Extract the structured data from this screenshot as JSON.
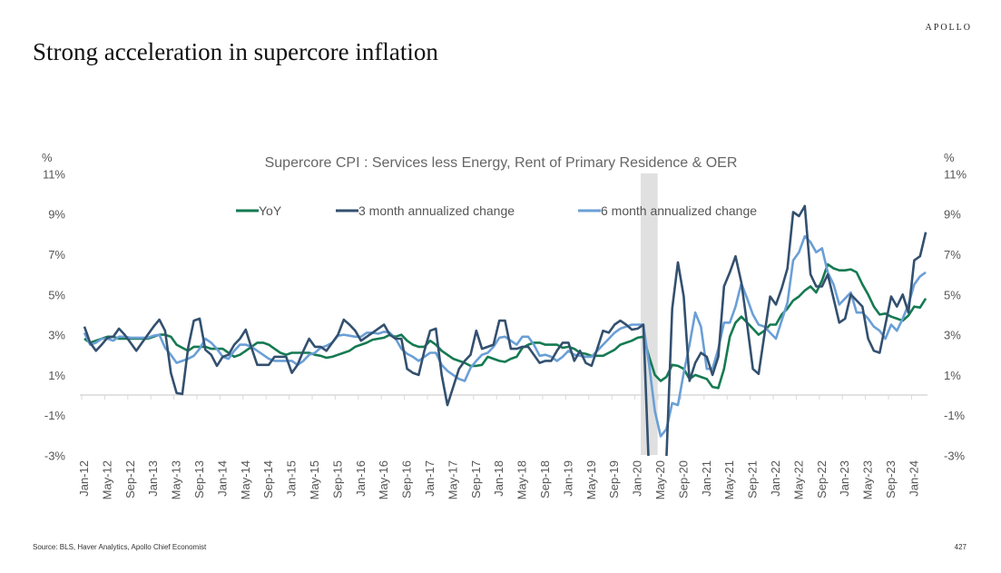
{
  "header": {
    "title": "Strong acceleration in supercore inflation",
    "logo": "APOLLO"
  },
  "footer": {
    "source": "Source: BLS, Haver Analytics, Apollo Chief Economist",
    "page_number": "427"
  },
  "colors": {
    "yoy": "#157a52",
    "m3": "#33506f",
    "m6": "#6a9fd6",
    "recession": "#e0e0e0",
    "axis": "#d9d9d9"
  },
  "chart_data": {
    "type": "line",
    "title": "Supercore CPI : Services less Energy, Rent of Primary Residence & OER",
    "yunit_left": "%",
    "yunit_right": "%",
    "ylim": [
      -3,
      11
    ],
    "yticks": [
      "11%",
      "9%",
      "7%",
      "5%",
      "3%",
      "1%",
      "-1%",
      "-3%"
    ],
    "ytick_values": [
      11,
      9,
      7,
      5,
      3,
      1,
      -1,
      -3
    ],
    "x_start": "Jan-12",
    "x_end": "Mar-24",
    "xtick_labels": [
      "Jan-12",
      "May-12",
      "Sep-12",
      "Jan-13",
      "May-13",
      "Sep-13",
      "Jan-14",
      "May-14",
      "Sep-14",
      "Jan-15",
      "May-15",
      "Sep-15",
      "Jan-16",
      "May-16",
      "Sep-16",
      "Jan-17",
      "May-17",
      "Sep-17",
      "Jan-18",
      "May-18",
      "Sep-18",
      "Jan-19",
      "May-19",
      "Sep-19",
      "Jan-20",
      "May-20",
      "Sep-20",
      "Jan-21",
      "May-21",
      "Sep-21",
      "Jan-22",
      "May-22",
      "Sep-22",
      "Jan-23",
      "May-23",
      "Sep-23",
      "Jan-24"
    ],
    "shaded_period": [
      "Feb-20",
      "Apr-20"
    ],
    "grid": false,
    "legend_position": "top",
    "series": [
      {
        "name": "YoY",
        "values": [
          2.8,
          2.6,
          2.7,
          2.8,
          2.9,
          2.9,
          2.8,
          2.8,
          2.8,
          2.8,
          2.8,
          2.8,
          2.9,
          3.0,
          3.0,
          2.9,
          2.5,
          2.35,
          2.2,
          2.4,
          2.4,
          2.4,
          2.3,
          2.3,
          2.3,
          2.1,
          1.9,
          2.0,
          2.2,
          2.4,
          2.6,
          2.6,
          2.5,
          2.3,
          2.1,
          2.0,
          2.1,
          2.1,
          2.1,
          2.1,
          2.0,
          1.95,
          1.85,
          1.9,
          2.0,
          2.1,
          2.2,
          2.4,
          2.5,
          2.6,
          2.75,
          2.8,
          2.85,
          3.0,
          2.9,
          3.0,
          2.7,
          2.5,
          2.4,
          2.4,
          2.7,
          2.5,
          2.2,
          2.0,
          1.8,
          1.7,
          1.6,
          1.45,
          1.45,
          1.5,
          1.9,
          1.8,
          1.7,
          1.65,
          1.8,
          1.9,
          2.35,
          2.5,
          2.6,
          2.6,
          2.5,
          2.5,
          2.5,
          2.35,
          2.4,
          2.3,
          2.1,
          2.05,
          1.95,
          1.95,
          1.95,
          2.1,
          2.25,
          2.5,
          2.6,
          2.7,
          2.85,
          2.9,
          1.9,
          1.0,
          0.7,
          0.9,
          1.5,
          1.45,
          1.3,
          0.8,
          1.0,
          0.9,
          0.8,
          0.4,
          0.35,
          1.3,
          2.9,
          3.6,
          3.9,
          3.6,
          3.3,
          3.0,
          3.2,
          3.5,
          3.5,
          4.0,
          4.3,
          4.7,
          4.9,
          5.2,
          5.4,
          5.1,
          5.7,
          6.5,
          6.3,
          6.2,
          6.2,
          6.25,
          6.1,
          5.5,
          5.0,
          4.4,
          4.0,
          4.05,
          3.9,
          3.8,
          3.7,
          3.95,
          4.4,
          4.35,
          4.8
        ]
      },
      {
        "name": "3 month annualized change",
        "values": [
          3.4,
          2.6,
          2.2,
          2.5,
          2.85,
          2.9,
          3.3,
          3.0,
          2.6,
          2.2,
          2.6,
          3.0,
          3.4,
          3.75,
          3.2,
          1.1,
          0.1,
          0.05,
          2.35,
          3.7,
          3.8,
          2.25,
          2.0,
          1.45,
          1.9,
          2.0,
          2.5,
          2.8,
          3.25,
          2.35,
          1.5,
          1.5,
          1.5,
          1.9,
          1.9,
          1.9,
          1.1,
          1.5,
          2.2,
          2.8,
          2.4,
          2.4,
          2.2,
          2.6,
          3.0,
          3.75,
          3.5,
          3.2,
          2.7,
          2.9,
          3.1,
          3.3,
          3.5,
          3.0,
          2.8,
          2.8,
          1.3,
          1.1,
          1.0,
          2.2,
          3.2,
          3.3,
          1.0,
          -0.5,
          0.4,
          1.3,
          1.7,
          2.0,
          3.2,
          2.3,
          2.4,
          2.5,
          3.7,
          3.7,
          2.3,
          2.3,
          2.4,
          2.4,
          2.0,
          1.6,
          1.7,
          1.7,
          2.2,
          2.6,
          2.6,
          1.7,
          2.2,
          1.6,
          1.45,
          2.3,
          3.2,
          3.1,
          3.5,
          3.7,
          3.5,
          3.25,
          3.3,
          3.5,
          -4.0,
          -6.0,
          -5.0,
          -3.2,
          4.3,
          6.6,
          4.9,
          0.7,
          1.6,
          2.1,
          1.9,
          1.0,
          1.9,
          5.4,
          6.1,
          6.9,
          5.6,
          3.5,
          1.3,
          1.05,
          3.0,
          4.9,
          4.5,
          5.3,
          6.3,
          9.1,
          8.9,
          9.4,
          6.0,
          5.4,
          5.4,
          6.0,
          4.8,
          3.6,
          3.8,
          5.0,
          4.7,
          4.4,
          2.8,
          2.2,
          2.1,
          3.5,
          4.9,
          4.4,
          5.0,
          4.1,
          6.7,
          6.9,
          8.1
        ]
      },
      {
        "name": "6 month annualized change",
        "values": [
          3.1,
          2.5,
          2.6,
          2.8,
          2.8,
          2.7,
          2.9,
          2.9,
          2.85,
          2.85,
          2.85,
          2.85,
          2.95,
          3.0,
          2.35,
          2.0,
          1.6,
          1.7,
          1.8,
          1.95,
          2.3,
          2.8,
          2.6,
          2.3,
          1.9,
          1.8,
          2.2,
          2.5,
          2.5,
          2.4,
          2.2,
          2.0,
          1.8,
          1.7,
          1.7,
          1.7,
          1.7,
          1.5,
          1.7,
          2.0,
          2.1,
          2.35,
          2.45,
          2.6,
          2.95,
          3.0,
          2.95,
          2.9,
          2.9,
          3.1,
          3.1,
          3.05,
          3.15,
          3.1,
          2.8,
          2.3,
          2.05,
          1.9,
          1.7,
          1.9,
          2.1,
          2.1,
          1.5,
          1.2,
          1.0,
          0.8,
          0.7,
          1.35,
          1.7,
          2.0,
          2.1,
          2.4,
          2.85,
          2.9,
          2.7,
          2.5,
          2.9,
          2.9,
          2.5,
          1.95,
          2.0,
          1.9,
          1.7,
          1.9,
          2.2,
          2.0,
          1.95,
          1.9,
          1.9,
          2.2,
          2.5,
          2.8,
          3.1,
          3.3,
          3.4,
          3.5,
          3.5,
          3.5,
          1.5,
          -0.8,
          -2.05,
          -1.7,
          -0.4,
          -0.5,
          1.1,
          2.5,
          4.1,
          3.4,
          1.3,
          1.3,
          2.3,
          3.6,
          3.6,
          4.4,
          5.55,
          4.8,
          4.0,
          3.5,
          3.4,
          3.1,
          2.8,
          3.7,
          4.6,
          6.7,
          7.1,
          7.9,
          7.6,
          7.1,
          7.3,
          6.1,
          5.5,
          4.5,
          4.8,
          5.1,
          4.1,
          4.1,
          3.8,
          3.4,
          3.2,
          2.8,
          3.5,
          3.2,
          3.8,
          4.5,
          5.5,
          5.9,
          6.1
        ]
      }
    ]
  }
}
